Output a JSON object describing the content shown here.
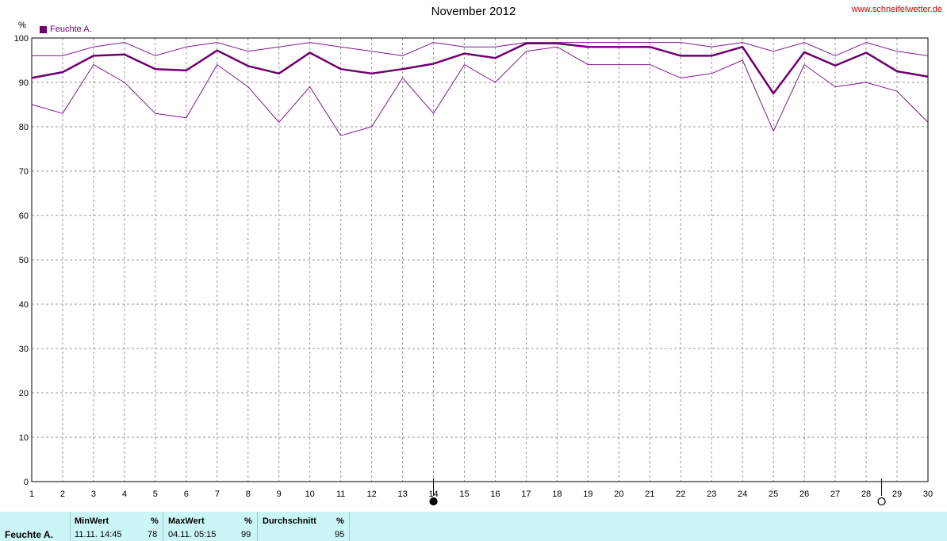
{
  "header": {
    "title": "November 2012",
    "site": "www.schneifelwetter.de",
    "unit": "%",
    "legend_label": "Feuchte A.",
    "legend_color": "#6e006e"
  },
  "chart_data": {
    "type": "line",
    "title": "November 2012",
    "ylabel": "%",
    "ylim": [
      0,
      100
    ],
    "yticks": [
      0,
      10,
      20,
      30,
      40,
      50,
      60,
      70,
      80,
      90,
      100
    ],
    "x": [
      1,
      2,
      3,
      4,
      5,
      6,
      7,
      8,
      9,
      10,
      11,
      12,
      13,
      14,
      15,
      16,
      17,
      18,
      19,
      20,
      21,
      22,
      23,
      24,
      25,
      26,
      27,
      28,
      29,
      30
    ],
    "xlim": [
      1,
      30
    ],
    "grid": true,
    "legend_position": "top-left",
    "series": [
      {
        "name": "Feuchte A.",
        "role": "mean",
        "color": "#6e006e",
        "values": [
          91,
          92.3,
          96,
          96.3,
          93,
          92.7,
          97.2,
          93.7,
          92,
          96.7,
          93,
          92,
          93,
          94.2,
          96.5,
          95.5,
          98.8,
          98.8,
          98,
          98,
          98,
          96,
          96,
          98,
          87.5,
          96.8,
          93.8,
          96.7,
          92.5,
          91.3
        ]
      },
      {
        "role": "max",
        "color": "#7a1a8a",
        "values": [
          96,
          96,
          98,
          99,
          96,
          98,
          99,
          97,
          98,
          99,
          98,
          97,
          96,
          99,
          98,
          98,
          99,
          99,
          99,
          99,
          99,
          99,
          98,
          99,
          97,
          99,
          96,
          99,
          97,
          96
        ]
      },
      {
        "role": "min",
        "color": "#7a1a8a",
        "values": [
          85,
          83,
          94,
          90,
          83,
          82,
          94,
          89,
          81,
          89,
          78,
          80,
          91,
          83,
          94,
          90,
          97,
          98,
          94,
          94,
          94,
          91,
          92,
          95,
          79,
          94,
          89,
          90,
          88,
          81
        ]
      }
    ],
    "moon_phases": [
      {
        "day": 14,
        "phase": "new"
      },
      {
        "day": 28.5,
        "phase": "full"
      }
    ]
  },
  "stats": {
    "series_label": "Feuchte A.",
    "min_header": "MinWert",
    "min_unit": "%",
    "min_time": "11.11.  14:45",
    "min_value": "78",
    "max_header": "MaxWert",
    "max_unit": "%",
    "max_time": "04.11.  05:15",
    "max_value": "99",
    "avg_header": "Durchschnitt",
    "avg_unit": "%",
    "avg_value": "95"
  }
}
